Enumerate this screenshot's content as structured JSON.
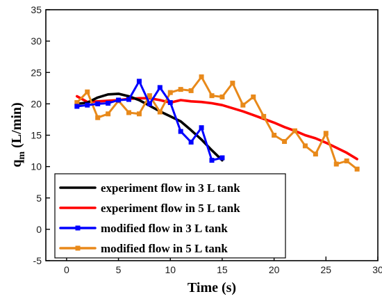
{
  "chart_data": {
    "type": "line",
    "xlabel": "Time (s)",
    "ylabel_main": "q",
    "ylabel_sub": "m",
    "ylabel_unit": " (L/min)",
    "xlim": [
      -2,
      30
    ],
    "ylim": [
      -5,
      35
    ],
    "xticks": [
      0,
      5,
      10,
      15,
      20,
      25,
      30
    ],
    "yticks": [
      -5,
      0,
      5,
      10,
      15,
      20,
      25,
      30,
      35
    ],
    "legend_position": "bottom-left",
    "grid": false,
    "series": [
      {
        "name": "experiment flow in 3 L tank",
        "color": "#000000",
        "marker": false,
        "x": [
          1,
          2,
          3,
          4,
          5,
          6,
          7,
          8,
          9,
          10,
          11,
          12,
          13,
          14,
          15
        ],
        "y": [
          20.0,
          20.2,
          21.0,
          21.5,
          21.6,
          21.2,
          20.6,
          19.7,
          18.8,
          18.0,
          17.2,
          15.8,
          14.3,
          12.6,
          11.0
        ]
      },
      {
        "name": "experiment flow in 5 L tank",
        "color": "#ff0000",
        "marker": false,
        "x": [
          1,
          2,
          3,
          4,
          5,
          6,
          7,
          8,
          9,
          10,
          11,
          12,
          13,
          14,
          15,
          16,
          17,
          18,
          19,
          20,
          21,
          22,
          23,
          24,
          25,
          26,
          27,
          28
        ],
        "y": [
          21.2,
          20.3,
          20.4,
          20.5,
          20.6,
          20.8,
          20.9,
          20.9,
          20.6,
          20.2,
          20.6,
          20.4,
          20.3,
          20.1,
          19.8,
          19.3,
          18.8,
          18.2,
          17.6,
          17.0,
          16.3,
          15.7,
          15.0,
          14.5,
          13.8,
          13.0,
          12.2,
          11.2
        ]
      },
      {
        "name": "modified flow in 3 L tank",
        "color": "#0000ff",
        "marker": true,
        "x": [
          1,
          2,
          3,
          4,
          5,
          6,
          7,
          8,
          9,
          10,
          11,
          12,
          13,
          14,
          15
        ],
        "y": [
          19.6,
          19.8,
          20.0,
          20.1,
          20.6,
          20.7,
          23.6,
          20.0,
          22.6,
          20.2,
          15.6,
          13.9,
          16.2,
          11.0,
          11.4
        ]
      },
      {
        "name": "modified flow in 5 L tank",
        "color": "#e8891a",
        "marker": true,
        "x": [
          1,
          2,
          3,
          4,
          5,
          6,
          7,
          8,
          9,
          10,
          11,
          12,
          13,
          14,
          15,
          16,
          17,
          18,
          19,
          20,
          21,
          22,
          23,
          24,
          25,
          26,
          27,
          28
        ],
        "y": [
          20.2,
          21.9,
          17.8,
          18.4,
          20.5,
          18.6,
          18.4,
          21.3,
          18.7,
          21.8,
          22.3,
          22.1,
          24.3,
          21.3,
          21.1,
          23.3,
          19.8,
          21.1,
          18.0,
          15.0,
          14.0,
          15.7,
          13.3,
          12.0,
          15.3,
          10.4,
          10.9,
          9.6
        ]
      }
    ]
  }
}
